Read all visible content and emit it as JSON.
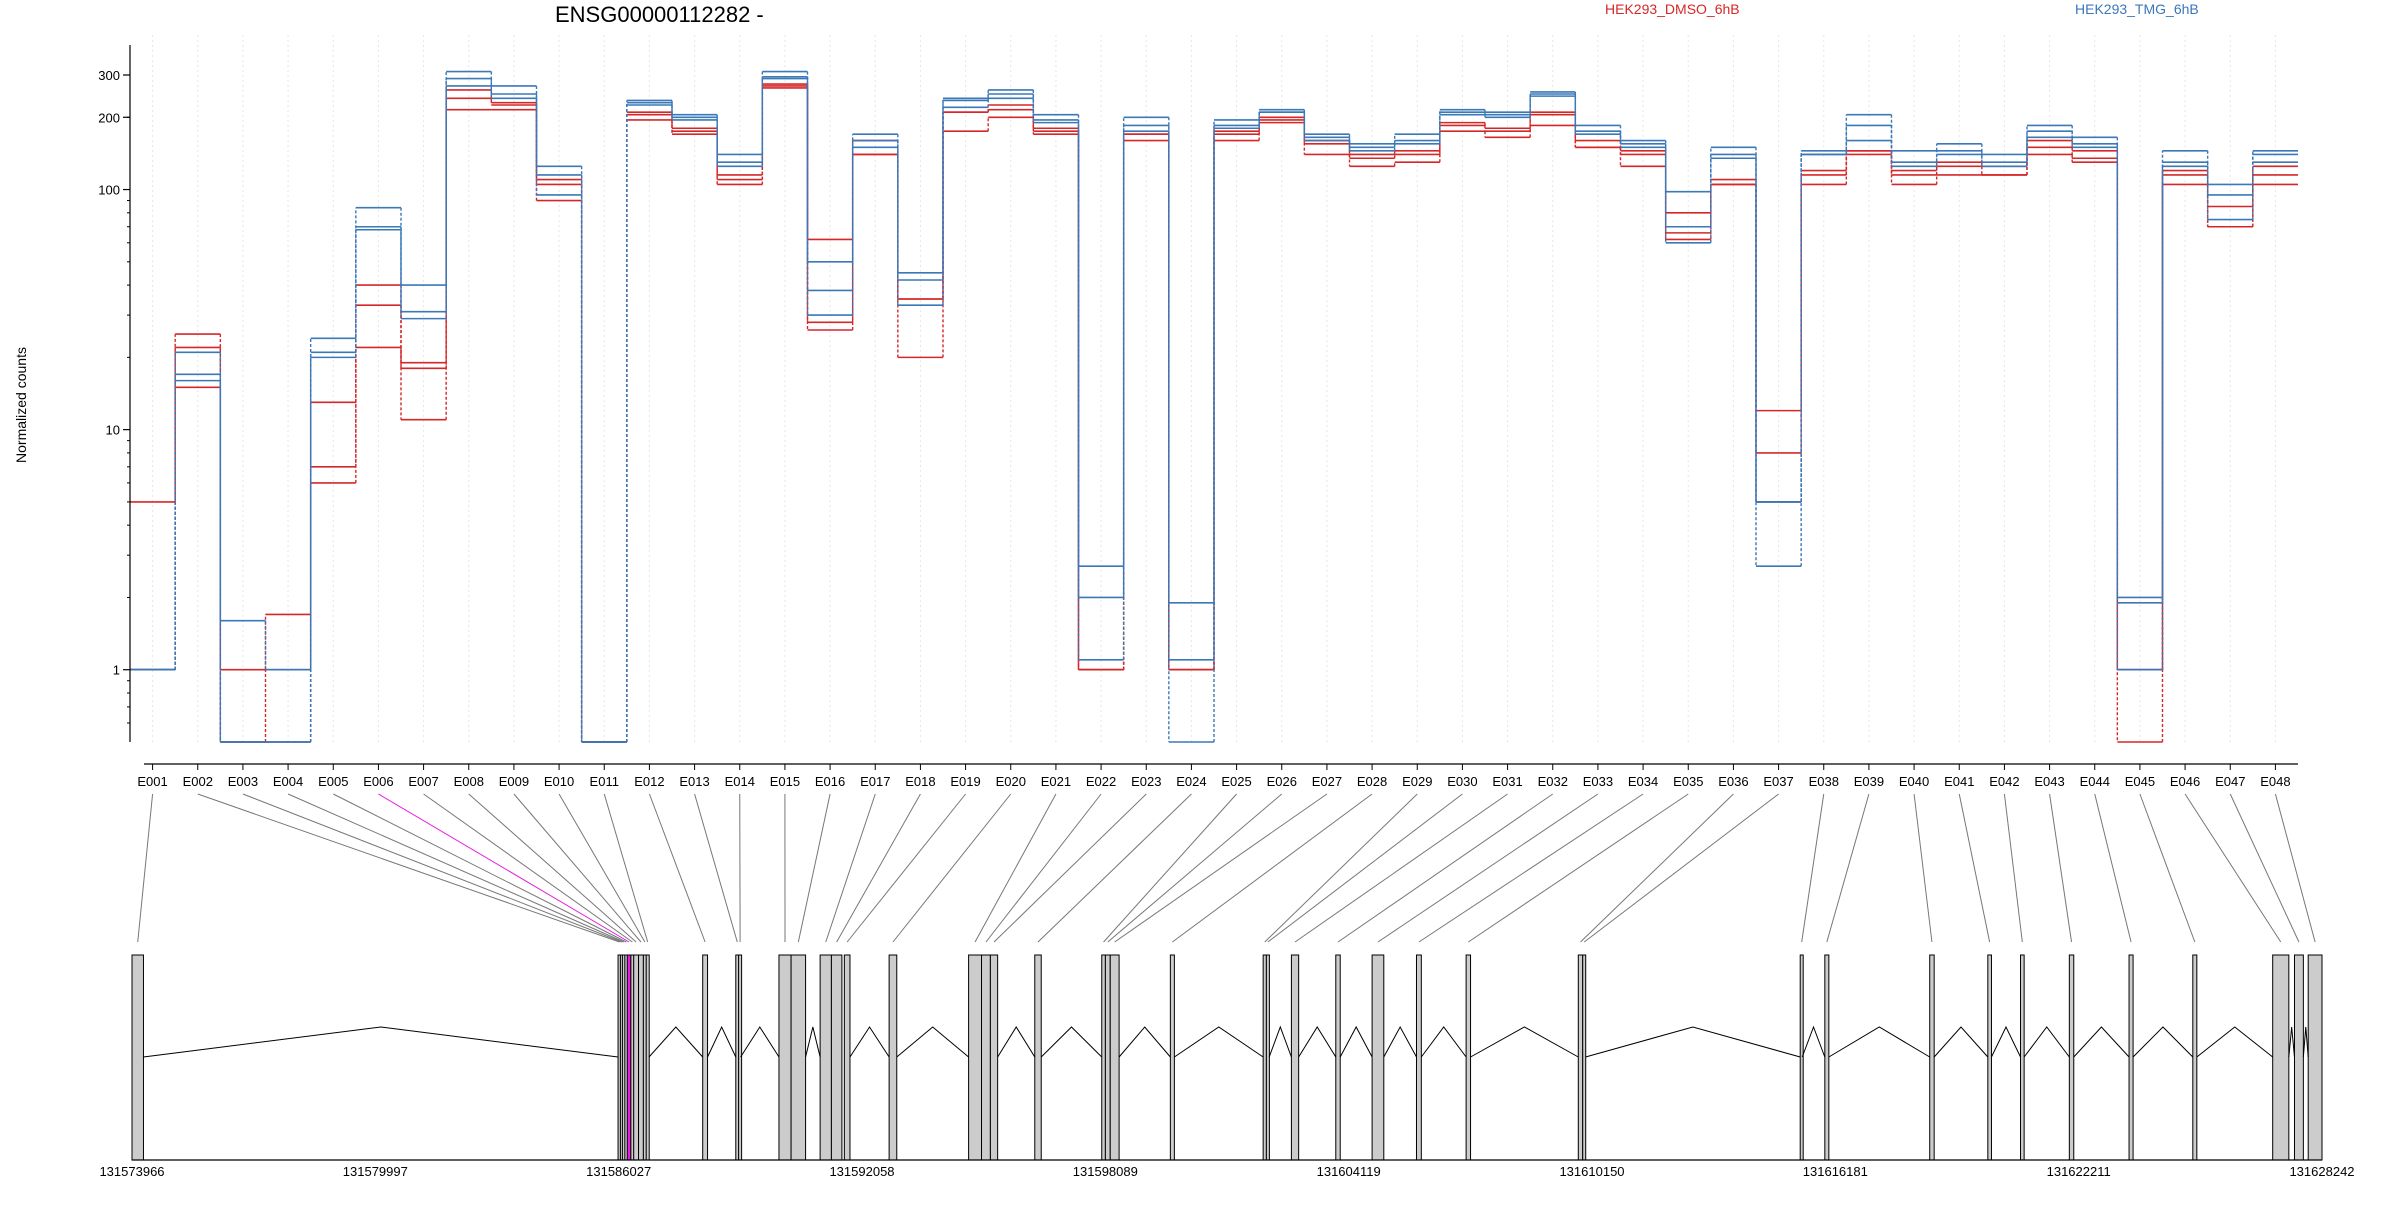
{
  "chart_data": {
    "type": "line",
    "title": "ENSG00000112282 -",
    "ylabel": "Normalized counts",
    "y_scale": "log",
    "ylim": [
      0.5,
      400
    ],
    "y_ticks": [
      {
        "value": 1,
        "label": "1"
      },
      {
        "value": 10,
        "label": "10"
      },
      {
        "value": 100,
        "label": "100"
      },
      {
        "value": 200,
        "label": "200"
      },
      {
        "value": 300,
        "label": "300"
      }
    ],
    "grid": "vertical dotted at each exon",
    "legend": [
      "HEK293_DMSO_6hB",
      "HEK293_TMG_6hB"
    ],
    "legend_placement": "top-right",
    "colors": {
      "dmso": "#d62728",
      "tmg": "#3a78b8",
      "highlight": "#e51ee0",
      "exon_fill": "#cccccc"
    },
    "categories": [
      "E001",
      "E002",
      "E003",
      "E004",
      "E005",
      "E006",
      "E007",
      "E008",
      "E009",
      "E010",
      "E011",
      "E012",
      "E013",
      "E014",
      "E015",
      "E016",
      "E017",
      "E018",
      "E019",
      "E020",
      "E021",
      "E022",
      "E023",
      "E024",
      "E025",
      "E026",
      "E027",
      "E028",
      "E029",
      "E030",
      "E031",
      "E032",
      "E033",
      "E034",
      "E035",
      "E036",
      "E037",
      "E038",
      "E039",
      "E040",
      "E041",
      "E042",
      "E043",
      "E044",
      "E045",
      "E046",
      "E047",
      "E048"
    ],
    "series": [
      {
        "name": "HEK293_DMSO_6hB",
        "group": "dmso",
        "values": [
          5,
          25,
          1,
          1.7,
          6,
          22,
          11,
          240,
          230,
          90,
          0.5,
          195,
          170,
          110,
          270,
          26,
          140,
          20,
          175,
          200,
          170,
          1,
          170,
          1,
          160,
          190,
          140,
          125,
          130,
          175,
          165,
          185,
          150,
          125,
          62,
          105,
          5,
          105,
          140,
          105,
          115,
          115,
          140,
          130,
          0.5,
          105,
          70,
          105
        ]
      },
      {
        "name": "HEK293_DMSO_6hB",
        "group": "dmso",
        "values": [
          1,
          15,
          0.5,
          0.5,
          7,
          33,
          18,
          215,
          215,
          105,
          0.5,
          205,
          175,
          105,
          265,
          28,
          140,
          35,
          210,
          215,
          175,
          1,
          160,
          1,
          170,
          195,
          155,
          135,
          140,
          185,
          175,
          205,
          150,
          140,
          66,
          105,
          8,
          115,
          145,
          115,
          125,
          115,
          150,
          135,
          1,
          115,
          70,
          115
        ]
      },
      {
        "name": "HEK293_DMSO_6hB",
        "group": "dmso",
        "values": [
          1,
          22,
          0.5,
          1,
          13,
          40,
          19,
          260,
          225,
          110,
          0.5,
          210,
          180,
          115,
          275,
          62,
          160,
          35,
          210,
          225,
          180,
          1,
          170,
          1,
          175,
          200,
          160,
          140,
          145,
          190,
          180,
          210,
          160,
          145,
          80,
          110,
          12,
          120,
          145,
          120,
          130,
          125,
          160,
          145,
          1,
          120,
          85,
          125
        ]
      },
      {
        "name": "HEK293_TMG_6hB",
        "group": "tmg",
        "values": [
          1,
          17,
          1.6,
          1,
          20,
          68,
          31,
          270,
          250,
          115,
          0.5,
          225,
          195,
          130,
          290,
          50,
          160,
          42,
          235,
          250,
          195,
          2,
          185,
          1.9,
          185,
          210,
          160,
          150,
          160,
          205,
          200,
          250,
          175,
          150,
          70,
          135,
          5,
          140,
          185,
          130,
          145,
          130,
          175,
          155,
          2,
          130,
          95,
          140
        ]
      },
      {
        "name": "HEK293_TMG_6hB",
        "group": "tmg",
        "values": [
          1,
          16,
          0.5,
          0.5,
          21,
          70,
          40,
          310,
          270,
          125,
          0.5,
          235,
          205,
          140,
          310,
          38,
          170,
          45,
          240,
          260,
          205,
          2.7,
          200,
          1.1,
          195,
          215,
          170,
          155,
          170,
          215,
          210,
          255,
          185,
          160,
          98,
          150,
          2.7,
          145,
          205,
          145,
          155,
          140,
          185,
          165,
          1.9,
          145,
          105,
          145
        ]
      },
      {
        "name": "HEK293_TMG_6hB",
        "group": "tmg",
        "values": [
          1,
          21,
          0.5,
          0.5,
          24,
          84,
          29,
          290,
          240,
          95,
          0.5,
          230,
          200,
          125,
          295,
          30,
          150,
          33,
          220,
          240,
          190,
          1.1,
          175,
          0.5,
          180,
          210,
          165,
          145,
          155,
          210,
          205,
          245,
          170,
          155,
          60,
          140,
          5,
          140,
          160,
          125,
          140,
          125,
          165,
          150,
          1,
          125,
          75,
          130
        ]
      }
    ],
    "exons": [
      {
        "id": "E001",
        "start": 131573966,
        "end": 131574250
      },
      {
        "id": "E002",
        "start": 131586012,
        "end": 131586070
      },
      {
        "id": "E003",
        "start": 131586070,
        "end": 131586120
      },
      {
        "id": "E004",
        "start": 131586120,
        "end": 131586180
      },
      {
        "id": "E005",
        "start": 131586180,
        "end": 131586240
      },
      {
        "id": "E006",
        "start": 131586240,
        "end": 131586330,
        "highlight": true
      },
      {
        "id": "E007",
        "start": 131586330,
        "end": 131586400
      },
      {
        "id": "E008",
        "start": 131586400,
        "end": 131586520
      },
      {
        "id": "E009",
        "start": 131586520,
        "end": 131586640
      },
      {
        "id": "E010",
        "start": 131586640,
        "end": 131586710
      },
      {
        "id": "E011",
        "start": 131586710,
        "end": 131586780
      },
      {
        "id": "E012",
        "start": 131588110,
        "end": 131588230
      },
      {
        "id": "E013",
        "start": 131588930,
        "end": 131588990
      },
      {
        "id": "E014",
        "start": 131589000,
        "end": 131589050
      },
      {
        "id": "E015",
        "start": 131590000,
        "end": 131590300
      },
      {
        "id": "E016",
        "start": 131590300,
        "end": 131590660
      },
      {
        "id": "E017",
        "start": 131591020,
        "end": 131591300
      },
      {
        "id": "E018",
        "start": 131591300,
        "end": 131591560
      },
      {
        "id": "E019",
        "start": 131591620,
        "end": 131591760
      },
      {
        "id": "E020",
        "start": 131592730,
        "end": 131592920
      },
      {
        "id": "E021",
        "start": 131594700,
        "end": 131595020
      },
      {
        "id": "E022",
        "start": 131595020,
        "end": 131595240
      },
      {
        "id": "E023",
        "start": 131595240,
        "end": 131595420
      },
      {
        "id": "E024",
        "start": 131596340,
        "end": 131596500
      },
      {
        "id": "E025",
        "start": 131598000,
        "end": 131598090
      },
      {
        "id": "E026",
        "start": 131598090,
        "end": 131598210
      },
      {
        "id": "E027",
        "start": 131598210,
        "end": 131598430
      },
      {
        "id": "E028",
        "start": 131599700,
        "end": 131599800
      },
      {
        "id": "E029",
        "start": 131602000,
        "end": 131602080
      },
      {
        "id": "E030",
        "start": 131602080,
        "end": 131602150
      },
      {
        "id": "E031",
        "start": 131602700,
        "end": 131602880
      },
      {
        "id": "E032",
        "start": 131603800,
        "end": 131603910
      },
      {
        "id": "E033",
        "start": 131604700,
        "end": 131604990
      },
      {
        "id": "E034",
        "start": 131605800,
        "end": 131605920
      },
      {
        "id": "E035",
        "start": 131607030,
        "end": 131607140
      },
      {
        "id": "E036",
        "start": 131609810,
        "end": 131609920
      },
      {
        "id": "E037",
        "start": 131609920,
        "end": 131609990
      },
      {
        "id": "E038",
        "start": 131615310,
        "end": 131615360
      },
      {
        "id": "E039",
        "start": 131615920,
        "end": 131616020
      },
      {
        "id": "E040",
        "start": 131618520,
        "end": 131618630
      },
      {
        "id": "E041",
        "start": 131619960,
        "end": 131620050
      },
      {
        "id": "E042",
        "start": 131620770,
        "end": 131620860
      },
      {
        "id": "E043",
        "start": 131621980,
        "end": 131622090
      },
      {
        "id": "E044",
        "start": 131623460,
        "end": 131623560
      },
      {
        "id": "E045",
        "start": 131625040,
        "end": 131625140
      },
      {
        "id": "E046",
        "start": 131627020,
        "end": 131627420
      },
      {
        "id": "E047",
        "start": 131627560,
        "end": 131627780
      },
      {
        "id": "E048",
        "start": 131627900,
        "end": 131628242
      }
    ],
    "genomic_ticks": [
      "131573966",
      "131579997",
      "131586027",
      "131592058",
      "131598089",
      "131604119",
      "131610150",
      "131616181",
      "131622211",
      "131628242"
    ],
    "genomic_range": [
      131573966,
      131628242
    ]
  }
}
